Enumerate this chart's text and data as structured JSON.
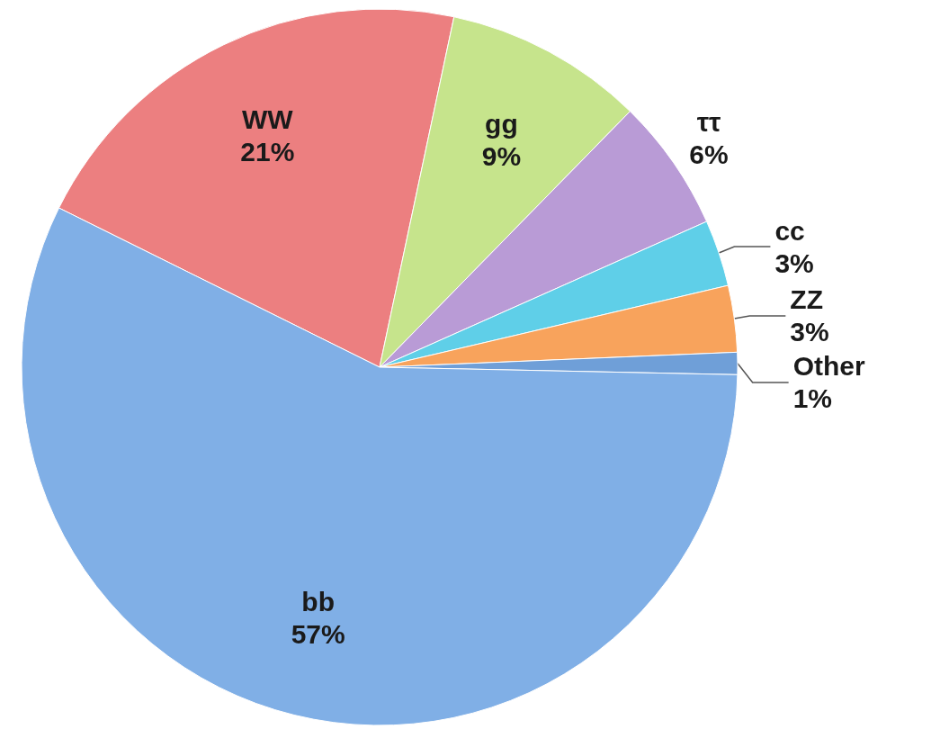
{
  "chart_data": {
    "type": "pie",
    "categories": [
      "WW",
      "gg",
      "ττ",
      "cc",
      "ZZ",
      "Other",
      "bb"
    ],
    "values": [
      21,
      9,
      6,
      3,
      3,
      1,
      57
    ],
    "colors": [
      "#ec7f80",
      "#c6e48c",
      "#b99bd6",
      "#5fcfe8",
      "#f8a35c",
      "#6f9fd8",
      "#80afe6"
    ],
    "value_labels": [
      "21%",
      "9%",
      "6%",
      "3%",
      "3%",
      "1%",
      "57%"
    ]
  }
}
